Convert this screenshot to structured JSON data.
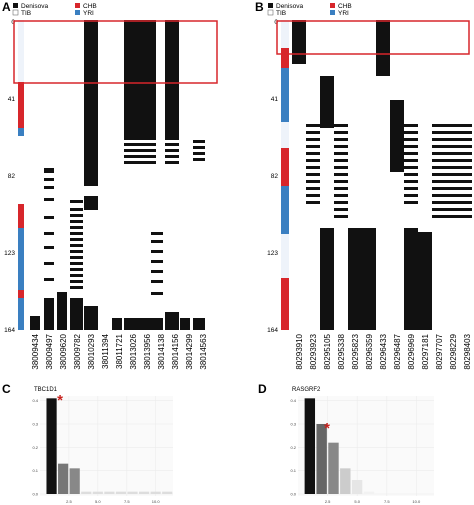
{
  "panel_a": {
    "letter": "A",
    "legend": [
      {
        "label": "Denisova",
        "color": "#111111"
      },
      {
        "label": "TIB",
        "color": "#ffffff"
      },
      {
        "label": "CHB",
        "color": "#d7262b"
      },
      {
        "label": "YRI",
        "color": "#3a7fc1"
      }
    ],
    "y_ticks": [
      "0",
      "41",
      "82",
      "123",
      "164"
    ],
    "positions": [
      "38009434",
      "38009497",
      "38009620",
      "38009782",
      "38010293",
      "38011394",
      "38011721",
      "38013026",
      "38013956",
      "38014138",
      "38014156",
      "38014299",
      "38014563"
    ]
  },
  "panel_b": {
    "letter": "B",
    "legend": [
      {
        "label": "Denisova",
        "color": "#111111"
      },
      {
        "label": "TIB",
        "color": "#ffffff"
      },
      {
        "label": "CHB",
        "color": "#d7262b"
      },
      {
        "label": "YRI",
        "color": "#3a7fc1"
      }
    ],
    "y_ticks": [
      "0",
      "41",
      "82",
      "123",
      "164"
    ],
    "positions": [
      "80293910",
      "80293923",
      "80295105",
      "80295338",
      "80295823",
      "80296359",
      "80296433",
      "80296487",
      "80296969",
      "80297181",
      "80297707",
      "80298229",
      "80298403"
    ]
  },
  "panel_c": {
    "letter": "C",
    "gene": "TBC1D1",
    "marker": "*",
    "chart_data": {
      "type": "bar",
      "title": "TBC1D1",
      "x": [
        1,
        2,
        3,
        4,
        5,
        6,
        7,
        8,
        9,
        10,
        11
      ],
      "values": [
        0.41,
        0.13,
        0.11,
        0.01,
        0.01,
        0.01,
        0.01,
        0.01,
        0.01,
        0.01,
        0.01
      ],
      "bar_colors": [
        "#111111",
        "#777777",
        "#888888",
        "#dddddd",
        "#dddddd",
        "#dddddd",
        "#dddddd",
        "#dddddd",
        "#dddddd",
        "#dddddd",
        "#dddddd"
      ],
      "xlim": [
        0,
        11.5
      ],
      "ylim": [
        0,
        0.42
      ],
      "x_ticks": [
        "2.5",
        "5.0",
        "7.5",
        "10.0"
      ],
      "y_ticks": [
        "0.4",
        "0.3",
        "0.2",
        "0.1",
        "0.0"
      ],
      "grid": true
    }
  },
  "panel_d": {
    "letter": "D",
    "gene": "RASGRF2",
    "marker": "*",
    "chart_data": {
      "type": "bar",
      "title": "RASGRF2",
      "x": [
        1,
        2,
        3,
        4,
        5,
        6,
        7,
        8,
        9,
        10,
        11
      ],
      "values": [
        0.41,
        0.3,
        0.22,
        0.11,
        0.06,
        0.01,
        0.0,
        0.0,
        0.0,
        0.0,
        0.0
      ],
      "bar_colors": [
        "#111111",
        "#666666",
        "#888888",
        "#cccccc",
        "#e6e6e6",
        "#f2f2f2",
        "#f5f5f5",
        "#f5f5f5",
        "#f5f5f5",
        "#f5f5f5",
        "#f5f5f5"
      ],
      "xlim": [
        0,
        11.5
      ],
      "ylim": [
        0,
        0.42
      ],
      "x_ticks": [
        "2.5",
        "5.0",
        "7.5",
        "10.0"
      ],
      "y_ticks": [
        "0.4",
        "0.3",
        "0.2",
        "0.1",
        "0.0"
      ],
      "grid": true
    }
  }
}
